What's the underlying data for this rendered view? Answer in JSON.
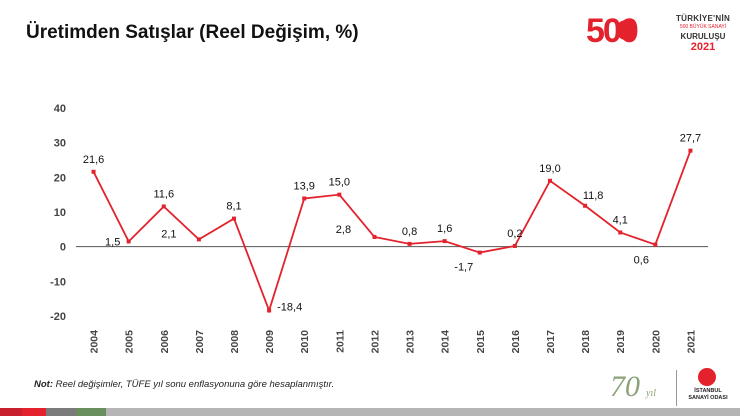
{
  "title": "Üretimden Satışlar (Reel Değişim, %)",
  "logo": {
    "number": "500",
    "line1": "TÜRKİYE'NİN",
    "line2": "500 BÜYÜK SANAYİ",
    "line3": "KURULUŞU",
    "line4": "2021"
  },
  "note": {
    "prefix": "Not:",
    "text": "Reel değişimler, TÜFE yıl sonu enflasyonuna göre hesaplanmıştır."
  },
  "anniversary": {
    "number": "70",
    "suffix": "yıl"
  },
  "iso": {
    "line1": "İSTANBUL",
    "line2": "SANAYİ ODASI"
  },
  "colors": {
    "accent": "#e4222d",
    "axis": "#555555",
    "stripes": [
      "#c8202c",
      "#e4222d",
      "#7b7b7b",
      "#6a8f5e",
      "#b5b5b5"
    ]
  },
  "chart_data": {
    "type": "line",
    "title": "Üretimden Satışlar (Reel Değişim, %)",
    "xlabel": "",
    "ylabel": "",
    "ylim": [
      -20,
      40
    ],
    "yticks": [
      40,
      30,
      20,
      10,
      0,
      -10,
      -20
    ],
    "ytick_labels": [
      "40",
      "30",
      "20",
      "10",
      "0",
      "-10",
      "-20"
    ],
    "grid": false,
    "legend": "none",
    "categories": [
      "2004",
      "2005",
      "2006",
      "2007",
      "2008",
      "2009",
      "2010",
      "2011",
      "2012",
      "2013",
      "2014",
      "2015",
      "2016",
      "2017",
      "2018",
      "2019",
      "2020",
      "2021"
    ],
    "series": [
      {
        "values": [
          21.6,
          1.5,
          11.6,
          2.1,
          8.1,
          -18.4,
          13.9,
          15.0,
          2.8,
          0.8,
          1.6,
          -1.7,
          0.2,
          19.0,
          11.8,
          4.1,
          0.6,
          27.7
        ],
        "labels": [
          "21,6",
          "1,5",
          "11,6",
          "2,1",
          "8,1",
          "-18,4",
          "13,9",
          "15,0",
          "2,8",
          "0,8",
          "1,6",
          "-1,7",
          "0,2",
          "19,0",
          "11,8",
          "4,1",
          "0,6",
          "27,7"
        ],
        "color": "#e4222d"
      }
    ]
  }
}
